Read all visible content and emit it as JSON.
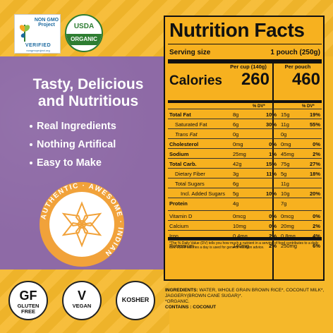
{
  "badges": {
    "nongmo": {
      "title": "NON GMO Project",
      "verified": "VERIFIED",
      "url": "nongmoproject.org"
    },
    "usda": {
      "top": "USDA",
      "bottom": "ORGANIC"
    }
  },
  "headline": [
    "Tasty, Delicious",
    "and Nutritious"
  ],
  "features": [
    "Real Ingredients",
    "Nothing Artifical",
    "Easy to Make"
  ],
  "seal": {
    "text": "AUTHENTIC · AWESOME · INDIAN"
  },
  "certs": [
    {
      "big": "GF",
      "small": "GLUTEN FREE"
    },
    {
      "big": "V",
      "small": "VEGAN"
    },
    {
      "big": "",
      "small": "KOSHER"
    }
  ],
  "nutrition": {
    "title": "Nutrition Facts",
    "serving_label": "Serving size",
    "serving_value": "1 pouch (250g)",
    "col1_head": "Per cup (140g)",
    "col2_head": "Per pouch",
    "calories_label": "Calories",
    "calories_cup": "260",
    "calories_pouch": "460",
    "dv_head": "% DV*",
    "rows": [
      {
        "label": "Total Fat",
        "bold": true,
        "indent": 0,
        "a": "8g",
        "b": "10%",
        "c": "15g",
        "d": "19%"
      },
      {
        "label": "Saturated Fat",
        "bold": false,
        "indent": 1,
        "a": "6g",
        "b": "30%",
        "c": "11g",
        "d": "55%"
      },
      {
        "label": "Trans Fat",
        "bold": false,
        "indent": 1,
        "a": "0g",
        "b": "",
        "c": "0g",
        "d": ""
      },
      {
        "label": "Cholesterol",
        "bold": true,
        "indent": 0,
        "a": "0mg",
        "b": "0%",
        "c": "0mg",
        "d": "0%"
      },
      {
        "label": "Sodium",
        "bold": true,
        "indent": 0,
        "a": "25mg",
        "b": "1%",
        "c": "45mg",
        "d": "2%"
      },
      {
        "label": "Total Carb.",
        "bold": true,
        "indent": 0,
        "a": "42g",
        "b": "15%",
        "c": "75g",
        "d": "27%"
      },
      {
        "label": "Dietary Fiber",
        "bold": false,
        "indent": 1,
        "a": "3g",
        "b": "11%",
        "c": "5g",
        "d": "18%"
      },
      {
        "label": "Total Sugars",
        "bold": false,
        "indent": 1,
        "a": "6g",
        "b": "",
        "c": "11g",
        "d": ""
      },
      {
        "label": "Incl. Added Sugars",
        "bold": false,
        "indent": 2,
        "a": "5g",
        "b": "10%",
        "c": "10g",
        "d": "20%"
      },
      {
        "label": "Protein",
        "bold": true,
        "indent": 0,
        "a": "4g",
        "b": "",
        "c": "7g",
        "d": ""
      },
      {
        "label": "Vitamin D",
        "bold": false,
        "indent": 0,
        "a": "0mcg",
        "b": "0%",
        "c": "0mcg",
        "d": "0%"
      },
      {
        "label": "Calcium",
        "bold": false,
        "indent": 0,
        "a": "10mg",
        "b": "0%",
        "c": "20mg",
        "d": "2%"
      },
      {
        "label": "Iron",
        "bold": false,
        "indent": 0,
        "a": "0.4mg",
        "b": "2%",
        "c": "0.8mg",
        "d": "4%"
      },
      {
        "label": "Potassium",
        "bold": false,
        "indent": 0,
        "a": "140mg",
        "b": "2%",
        "c": "250mg",
        "d": "6%"
      }
    ],
    "footnote": "*The % Daily Value (DV) tells you how much a nutrient in a serving of food contributes to a daily diet. 2,000 calories a day is used for general nutrition advice."
  },
  "ingredients": {
    "label": "INGREDIENTS:",
    "text": "WATER, WHOLE GRAIN BROWN RICE*, COCONUT MILK*, JAGGERY(BROWN CANE SUGAR)*.",
    "organic": "*ORGANIC.",
    "contains_label": "CONTAINS :",
    "contains": "COCONUT"
  }
}
